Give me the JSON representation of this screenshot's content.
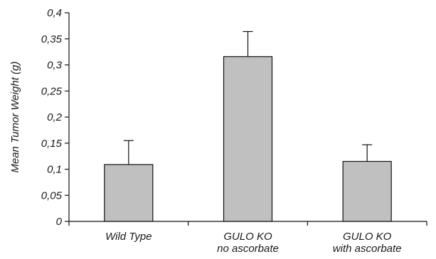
{
  "chart_data": {
    "type": "bar",
    "title": "",
    "xlabel": "",
    "ylabel": "Mean Tumor Weight (g)",
    "ylim": [
      0,
      0.4
    ],
    "yticks": [
      0,
      0.05,
      0.1,
      0.15,
      0.2,
      0.25,
      0.3,
      0.35,
      0.4
    ],
    "ytick_labels": [
      "0",
      "0,05",
      "0,1",
      "0,15",
      "0,2",
      "0,25",
      "0,3",
      "0,35",
      "0,4"
    ],
    "categories": [
      [
        "Wild Type"
      ],
      [
        "GULO KO",
        "no ascorbate"
      ],
      [
        "GULO KO",
        "with ascorbate"
      ]
    ],
    "values": [
      0.109,
      0.316,
      0.115
    ],
    "error_upper": [
      0.046,
      0.048,
      0.032
    ],
    "grid": false,
    "legend": "none",
    "bar_color": "#c0c0c0",
    "bar_stroke": "#111111"
  }
}
